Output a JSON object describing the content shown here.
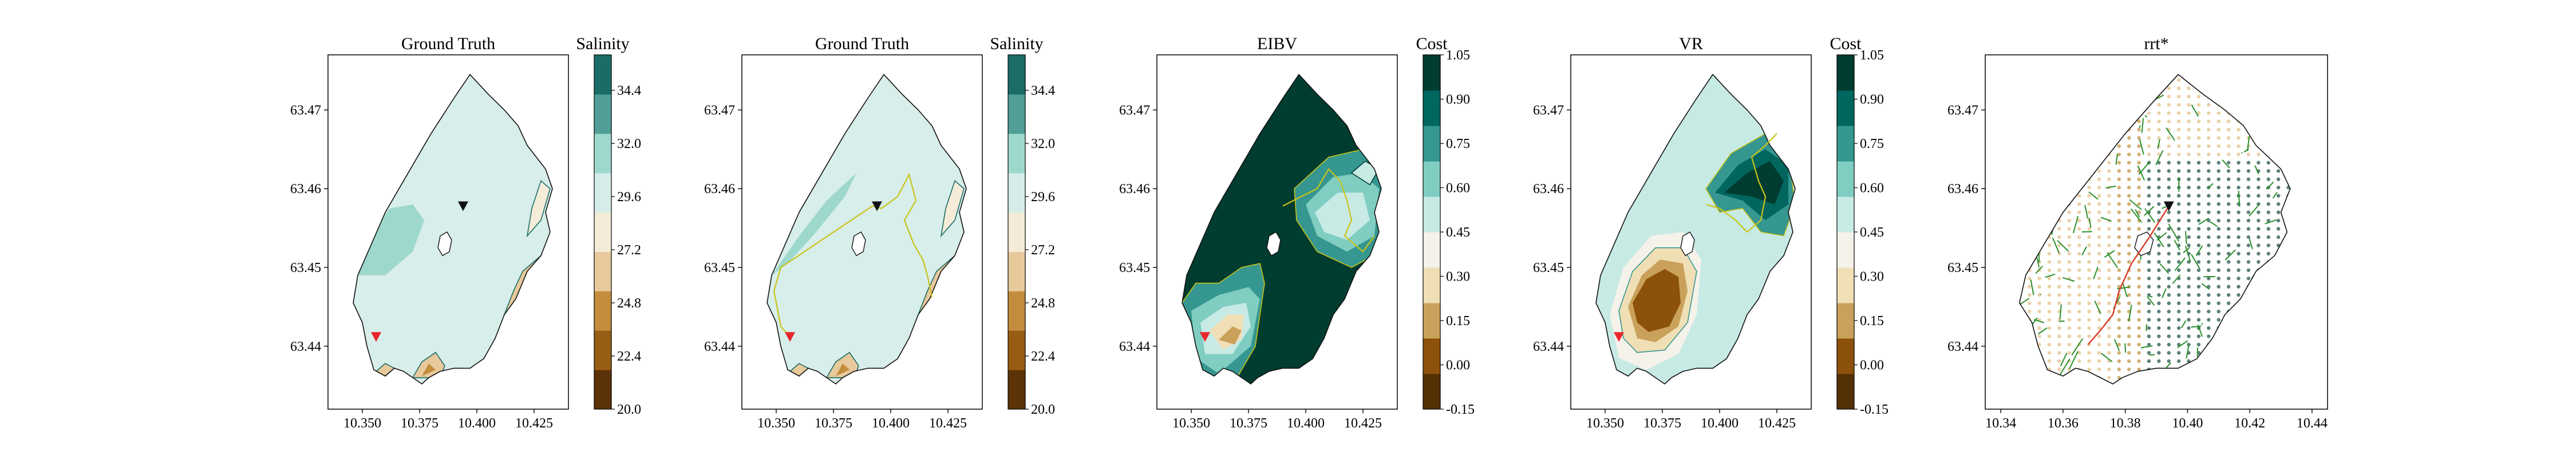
{
  "chart_data": [
    {
      "type": "heatmap",
      "title": "Ground Truth",
      "colorbar_label": "Salinity",
      "colorbar_ticks": [
        "20.0",
        "22.4",
        "24.8",
        "27.2",
        "29.6",
        "32.0",
        "34.4"
      ],
      "colorbar_range": [
        20.0,
        36.0
      ],
      "xticks": [
        "10.350",
        "10.375",
        "10.400",
        "10.425"
      ],
      "yticks": [
        "63.44",
        "63.45",
        "63.46",
        "63.47"
      ],
      "xlim": [
        10.335,
        10.44
      ],
      "ylim": [
        63.432,
        63.477
      ],
      "start_marker": {
        "lon": 10.356,
        "lat": 63.4412,
        "color": "#e8262b"
      },
      "end_marker": {
        "lon": 10.394,
        "lat": 63.4578,
        "color": "#111111"
      },
      "path": []
    },
    {
      "type": "heatmap",
      "title": "Ground Truth",
      "colorbar_label": "Salinity",
      "colorbar_ticks": [
        "20.0",
        "22.4",
        "24.8",
        "27.2",
        "29.6",
        "32.0",
        "34.4"
      ],
      "colorbar_range": [
        20.0,
        36.0
      ],
      "xticks": [
        "10.350",
        "10.375",
        "10.400",
        "10.425"
      ],
      "yticks": [
        "63.44",
        "63.45",
        "63.46",
        "63.47"
      ],
      "xlim": [
        10.335,
        10.44
      ],
      "ylim": [
        63.432,
        63.477
      ],
      "start_marker": {
        "lon": 10.356,
        "lat": 63.4412,
        "color": "#e8262b"
      },
      "end_marker": {
        "lon": 10.394,
        "lat": 63.4578,
        "color": "#111111"
      },
      "path": [
        [
          10.356,
          63.4412
        ],
        [
          10.352,
          63.4425
        ],
        [
          10.349,
          63.447
        ],
        [
          10.352,
          63.45
        ],
        [
          10.392,
          63.4578
        ],
        [
          10.396,
          63.4575
        ],
        [
          10.403,
          63.459
        ],
        [
          10.408,
          63.4618
        ],
        [
          10.411,
          63.4585
        ],
        [
          10.406,
          63.456
        ],
        [
          10.41,
          63.453
        ],
        [
          10.414,
          63.451
        ],
        [
          10.416,
          63.449
        ],
        [
          10.418,
          63.4462
        ]
      ]
    },
    {
      "type": "heatmap",
      "title": "EIBV",
      "colorbar_label": "Cost",
      "colorbar_ticks": [
        "-0.15",
        "0.00",
        "0.15",
        "0.30",
        "0.45",
        "0.60",
        "0.75",
        "0.90",
        "1.05"
      ],
      "colorbar_range": [
        -0.15,
        1.05
      ],
      "xticks": [
        "10.350",
        "10.375",
        "10.400",
        "10.425"
      ],
      "yticks": [
        "63.44",
        "63.45",
        "63.46",
        "63.47"
      ],
      "xlim": [
        10.335,
        10.44
      ],
      "ylim": [
        63.432,
        63.477
      ],
      "start_marker": {
        "lon": 10.356,
        "lat": 63.4412,
        "color": "#e8262b"
      },
      "end_marker": null,
      "path": [
        [
          10.39,
          63.4578
        ],
        [
          10.398,
          63.459
        ],
        [
          10.405,
          63.46
        ],
        [
          10.41,
          63.4625
        ],
        [
          10.415,
          63.461
        ],
        [
          10.418,
          63.4585
        ],
        [
          10.42,
          63.456
        ],
        [
          10.417,
          63.454
        ],
        [
          10.425,
          63.452
        ],
        [
          10.43,
          63.454
        ]
      ]
    },
    {
      "type": "heatmap",
      "title": "VR",
      "colorbar_label": "Cost",
      "colorbar_ticks": [
        "-0.15",
        "0.00",
        "0.15",
        "0.30",
        "0.45",
        "0.60",
        "0.75",
        "0.90",
        "1.05"
      ],
      "colorbar_range": [
        -0.15,
        1.05
      ],
      "xticks": [
        "10.350",
        "10.375",
        "10.400",
        "10.425"
      ],
      "yticks": [
        "63.44",
        "63.45",
        "63.46",
        "63.47"
      ],
      "xlim": [
        10.335,
        10.44
      ],
      "ylim": [
        63.432,
        63.477
      ],
      "start_marker": {
        "lon": 10.356,
        "lat": 63.4412,
        "color": "#e8262b"
      },
      "end_marker": null,
      "path": [
        [
          10.394,
          63.458
        ],
        [
          10.4,
          63.4575
        ],
        [
          10.407,
          63.456
        ],
        [
          10.412,
          63.4545
        ],
        [
          10.418,
          63.456
        ],
        [
          10.42,
          63.459
        ],
        [
          10.417,
          63.461
        ],
        [
          10.414,
          63.464
        ],
        [
          10.42,
          63.4655
        ],
        [
          10.425,
          63.467
        ]
      ]
    },
    {
      "type": "scatter",
      "title": "rrt*",
      "xticks": [
        "10.34",
        "10.36",
        "10.38",
        "10.40",
        "10.42",
        "10.44"
      ],
      "yticks": [
        "63.44",
        "63.45",
        "63.46",
        "63.47"
      ],
      "xlim": [
        10.335,
        10.445
      ],
      "ylim": [
        63.432,
        63.477
      ],
      "end_marker": {
        "lon": 10.394,
        "lat": 63.4578,
        "color": "#111111"
      },
      "path": [
        [
          10.394,
          63.4578
        ],
        [
          10.388,
          63.454
        ],
        [
          10.382,
          63.4505
        ],
        [
          10.378,
          63.447
        ],
        [
          10.376,
          63.444
        ],
        [
          10.372,
          63.442
        ],
        [
          10.368,
          63.4402
        ]
      ]
    }
  ]
}
